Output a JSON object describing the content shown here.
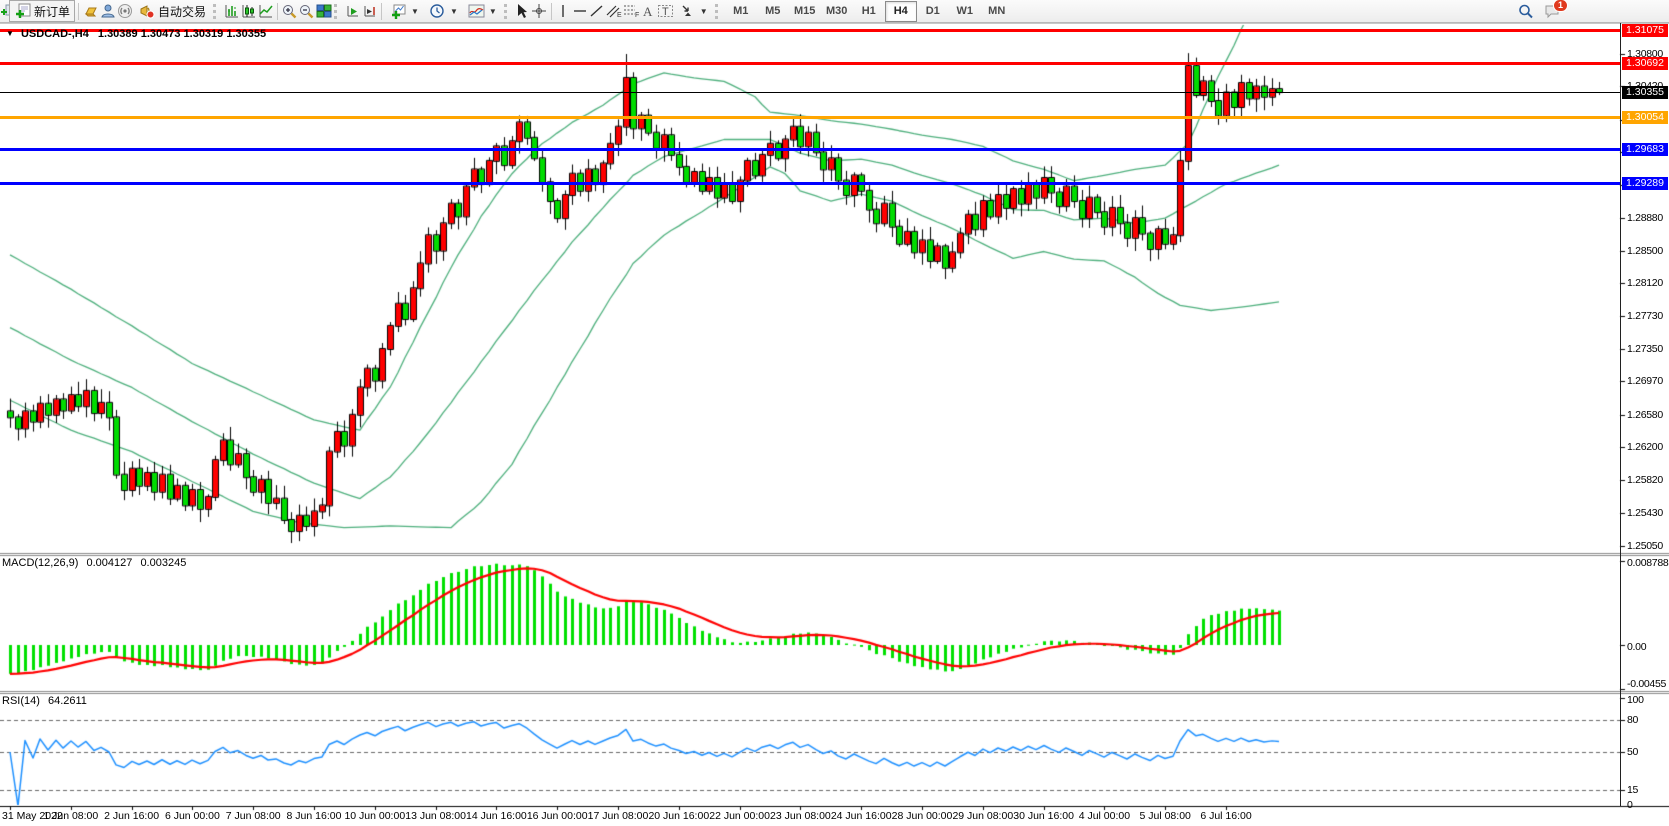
{
  "app": {
    "toolbar": {
      "new_order": "新订单",
      "auto_trading": "自动交易",
      "timeframes": [
        "M1",
        "M5",
        "M15",
        "M30",
        "H1",
        "H4",
        "D1",
        "W1",
        "MN"
      ],
      "active_timeframe": "H4",
      "notification_count": "1",
      "icon_names": [
        "new-order-icon",
        "gold-icon",
        "community-icon",
        "signal-icon",
        "auto-trading-icon",
        "bar-chart-icon",
        "candlestick-icon",
        "line-chart-icon",
        "zoom-in-icon",
        "zoom-out-icon",
        "tile-windows-icon",
        "auto-scroll-icon",
        "chart-shift-icon",
        "new-chart-icon",
        "periods-icon",
        "indicators-icon",
        "cursor-icon",
        "crosshair-icon",
        "vertical-line-icon",
        "horizontal-line-icon",
        "trendline-icon",
        "channel-icon",
        "fibonacci-icon",
        "text-icon",
        "text-label-icon",
        "arrows-icon",
        "search-icon",
        "chat-icon"
      ]
    }
  },
  "chart": {
    "title": {
      "collapse_arrow": "▼",
      "symbol_period": "USDCAD-,H4",
      "ohlc": "1.30389 1.30473 1.30319 1.30355"
    },
    "price_ticks": [
      "1.30800",
      "1.30420",
      "1.30030",
      "1.29650",
      "1.29270",
      "1.28880",
      "1.28500",
      "1.28120",
      "1.27730",
      "1.27350",
      "1.26970",
      "1.26580",
      "1.26200",
      "1.25820",
      "1.25430",
      "1.25050"
    ],
    "levels": [
      {
        "label": "1.31075",
        "price": 1.31075,
        "color": "#FF0000",
        "thickness": 3
      },
      {
        "label": "1.30692",
        "price": 1.30692,
        "color": "#FF0000",
        "thickness": 3
      },
      {
        "label": "1.30355",
        "price": 1.30355,
        "color": "#000000",
        "thickness": 1
      },
      {
        "label": "1.30054",
        "price": 1.30054,
        "color": "#FFA500",
        "thickness": 3
      },
      {
        "label": "1.29683",
        "price": 1.29683,
        "color": "#0000FF",
        "thickness": 3
      },
      {
        "label": "1.29289",
        "price": 1.29289,
        "color": "#0000FF",
        "thickness": 3
      }
    ],
    "time_labels": [
      "31 May 2022",
      "1 Jun 08:00",
      "2 Jun 16:00",
      "6 Jun 00:00",
      "7 Jun 08:00",
      "8 Jun 16:00",
      "10 Jun 00:00",
      "13 Jun 08:00",
      "14 Jun 16:00",
      "16 Jun 00:00",
      "17 Jun 08:00",
      "20 Jun 16:00",
      "22 Jun 00:00",
      "23 Jun 08:00",
      "24 Jun 16:00",
      "28 Jun 00:00",
      "29 Jun 08:00",
      "30 Jun 16:00",
      "4 Jul 00:00",
      "5 Jul 08:00",
      "6 Jul 16:00"
    ],
    "macd": {
      "label": "MACD(12,26,9)",
      "value_main": "0.004127",
      "value_signal": "0.003245",
      "axis": [
        {
          "label": "0.008788",
          "v": 0.008788
        },
        {
          "label": "0.00",
          "v": 0
        },
        {
          "label": "-0.00455",
          "v": -0.00455
        }
      ]
    },
    "rsi": {
      "label": "RSI(14)",
      "value": "64.2611",
      "axis": [
        {
          "label": "100",
          "v": 100
        },
        {
          "label": "80",
          "v": 80
        },
        {
          "label": "50",
          "v": 50
        },
        {
          "label": "15",
          "v": 15
        },
        {
          "label": "0",
          "v": 0
        }
      ],
      "dashed_levels": [
        80,
        50,
        15
      ]
    }
  },
  "chart_data": {
    "type": "candlestick",
    "symbol": "USDCAD-",
    "timeframe": "H4",
    "current_bar": {
      "open": 1.30389,
      "high": 1.30473,
      "low": 1.30319,
      "close": 1.30355
    },
    "first_open": 1.2662,
    "closes": [
      1.2655,
      1.2642,
      1.2662,
      1.265,
      1.2671,
      1.2658,
      1.2676,
      1.2663,
      1.2681,
      1.2668,
      1.2686,
      1.266,
      1.2672,
      1.2655,
      1.2588,
      1.257,
      1.2595,
      1.2575,
      1.259,
      1.2568,
      1.2588,
      1.256,
      1.2575,
      1.2552,
      1.257,
      1.2548,
      1.2562,
      1.2605,
      1.2628,
      1.26,
      1.2612,
      1.2585,
      1.2568,
      1.2582,
      1.2555,
      1.256,
      1.2535,
      1.2522,
      1.254,
      1.2528,
      1.2545,
      1.2552,
      1.2615,
      1.2638,
      1.2622,
      1.2658,
      1.269,
      1.2712,
      1.2698,
      1.2735,
      1.2762,
      1.2788,
      1.277,
      1.2806,
      1.2835,
      1.2868,
      1.285,
      1.2882,
      1.2905,
      1.289,
      1.2925,
      1.2945,
      1.2928,
      1.2955,
      1.2972,
      1.295,
      1.2978,
      1.3,
      1.2982,
      1.2958,
      1.293,
      1.2908,
      1.2888,
      1.2915,
      1.294,
      1.292,
      1.2945,
      1.2928,
      1.2952,
      1.2975,
      1.2995,
      1.3052,
      1.2993,
      1.3008,
      1.2988,
      1.297,
      1.2985,
      1.2962,
      1.2948,
      1.293,
      1.2942,
      1.292,
      1.2935,
      1.2912,
      1.2928,
      1.2908,
      1.2932,
      1.2955,
      1.2938,
      1.2962,
      1.2975,
      1.2958,
      1.298,
      1.2995,
      1.2972,
      1.2988,
      1.2965,
      1.2945,
      1.2958,
      1.2932,
      1.2915,
      1.2938,
      1.292,
      1.2898,
      1.2882,
      1.2905,
      1.2878,
      1.2858,
      1.2872,
      1.2848,
      1.2862,
      1.2838,
      1.2855,
      1.283,
      1.2848,
      1.287,
      1.2892,
      1.2875,
      1.2908,
      1.289,
      1.2915,
      1.29,
      1.2922,
      1.2905,
      1.2928,
      1.2912,
      1.2935,
      1.2918,
      1.2902,
      1.2925,
      1.2908,
      1.2888,
      1.2912,
      1.2895,
      1.2878,
      1.29,
      1.2882,
      1.2865,
      1.2888,
      1.287,
      1.2852,
      1.2875,
      1.2858,
      1.2868,
      1.2955,
      1.3066,
      1.3032,
      1.3048,
      1.3025,
      1.3008,
      1.3035,
      1.3018,
      1.3046,
      1.3028,
      1.3042,
      1.303,
      1.30389,
      1.30355
    ],
    "wick_high_overrides": {
      "81": 1.308,
      "155": 1.3081,
      "167": 1.30473
    },
    "wick_low_overrides": {
      "154": 1.286,
      "167": 1.30319
    },
    "bollinger": {
      "upper": [
        [
          0,
          1.2845
        ],
        [
          8,
          1.2805
        ],
        [
          16,
          1.2762
        ],
        [
          24,
          1.2718
        ],
        [
          32,
          1.2685
        ],
        [
          40,
          1.2652
        ],
        [
          46,
          1.264
        ],
        [
          50,
          1.269
        ],
        [
          54,
          1.276
        ],
        [
          58,
          1.283
        ],
        [
          62,
          1.289
        ],
        [
          66,
          1.294
        ],
        [
          70,
          1.2975
        ],
        [
          74,
          1.3
        ],
        [
          78,
          1.302
        ],
        [
          82,
          1.3045
        ],
        [
          86,
          1.3058
        ],
        [
          90,
          1.3052
        ],
        [
          94,
          1.3048
        ],
        [
          98,
          1.303
        ],
        [
          100,
          1.3012
        ],
        [
          104,
          1.3008
        ],
        [
          108,
          1.3002
        ],
        [
          112,
          1.2998
        ],
        [
          116,
          1.2992
        ],
        [
          120,
          1.2985
        ],
        [
          124,
          1.298
        ],
        [
          128,
          1.2972
        ],
        [
          132,
          1.2955
        ],
        [
          136,
          1.2945
        ],
        [
          140,
          1.2932
        ],
        [
          144,
          1.2938
        ],
        [
          148,
          1.2945
        ],
        [
          152,
          1.295
        ],
        [
          155,
          1.2975
        ],
        [
          158,
          1.3035
        ],
        [
          161,
          1.309
        ],
        [
          164,
          1.3145
        ]
      ],
      "middle": [
        [
          0,
          1.276
        ],
        [
          8,
          1.2722
        ],
        [
          16,
          1.269
        ],
        [
          24,
          1.265
        ],
        [
          32,
          1.2612
        ],
        [
          40,
          1.2578
        ],
        [
          46,
          1.256
        ],
        [
          50,
          1.2585
        ],
        [
          54,
          1.2625
        ],
        [
          58,
          1.2672
        ],
        [
          62,
          1.272
        ],
        [
          66,
          1.2768
        ],
        [
          70,
          1.2815
        ],
        [
          74,
          1.286
        ],
        [
          78,
          1.29
        ],
        [
          82,
          1.2938
        ],
        [
          86,
          1.296
        ],
        [
          90,
          1.297
        ],
        [
          94,
          1.298
        ],
        [
          100,
          1.298
        ],
        [
          104,
          1.2964
        ],
        [
          108,
          1.2955
        ],
        [
          112,
          1.2957
        ],
        [
          116,
          1.295
        ],
        [
          120,
          1.2938
        ],
        [
          124,
          1.2928
        ],
        [
          128,
          1.2915
        ],
        [
          132,
          1.2898
        ],
        [
          136,
          1.2897
        ],
        [
          140,
          1.2886
        ],
        [
          144,
          1.2888
        ],
        [
          148,
          1.2882
        ],
        [
          152,
          1.2888
        ],
        [
          156,
          1.2908
        ],
        [
          160,
          1.2928
        ],
        [
          167,
          1.295
        ]
      ],
      "lower": [
        [
          0,
          1.2675
        ],
        [
          8,
          1.264
        ],
        [
          16,
          1.2615
        ],
        [
          24,
          1.258
        ],
        [
          32,
          1.2545
        ],
        [
          38,
          1.2532
        ],
        [
          44,
          1.2526
        ],
        [
          50,
          1.2528
        ],
        [
          54,
          1.2527
        ],
        [
          58,
          1.2526
        ],
        [
          62,
          1.2556
        ],
        [
          66,
          1.26
        ],
        [
          70,
          1.266
        ],
        [
          74,
          1.272
        ],
        [
          78,
          1.278
        ],
        [
          82,
          1.2835
        ],
        [
          86,
          1.2868
        ],
        [
          90,
          1.289
        ],
        [
          94,
          1.2912
        ],
        [
          100,
          1.2948
        ],
        [
          102,
          1.294
        ],
        [
          104,
          1.292
        ],
        [
          108,
          1.2908
        ],
        [
          112,
          1.2916
        ],
        [
          116,
          1.2908
        ],
        [
          120,
          1.2891
        ],
        [
          124,
          1.2876
        ],
        [
          128,
          1.2858
        ],
        [
          132,
          1.2841
        ],
        [
          136,
          1.2849
        ],
        [
          140,
          1.284
        ],
        [
          144,
          1.2838
        ],
        [
          148,
          1.2819
        ],
        [
          151,
          1.28
        ],
        [
          154,
          1.2786
        ],
        [
          158,
          1.278
        ],
        [
          162,
          1.2784
        ],
        [
          167,
          1.279
        ]
      ]
    },
    "macd": {
      "fast": 12,
      "slow": 26,
      "signal_period": 9,
      "current_macd": 0.004127,
      "current_signal": 0.003245,
      "axis_max": 0.008788,
      "axis_min": -0.00455
    },
    "rsi": {
      "period": 14,
      "current": 64.2611,
      "levels": [
        80,
        50,
        15
      ]
    },
    "y_axis_ticks": [
      1.308,
      1.3042,
      1.3003,
      1.2965,
      1.2927,
      1.2888,
      1.285,
      1.2812,
      1.2773,
      1.2735,
      1.2697,
      1.2658,
      1.262,
      1.2582,
      1.2543,
      1.2505
    ]
  },
  "colors": {
    "bull": "#FF0000",
    "bear": "#00DC00",
    "candle_border": "#000000",
    "band": "#4DAF7C",
    "macd_hist": "#00E000",
    "macd_signal": "#FF0000",
    "rsi_line": "#1E90FF",
    "level_red": "#FF0000",
    "level_orange": "#FFA500",
    "level_blue": "#0000FF",
    "current_price_badge": "#000000"
  }
}
